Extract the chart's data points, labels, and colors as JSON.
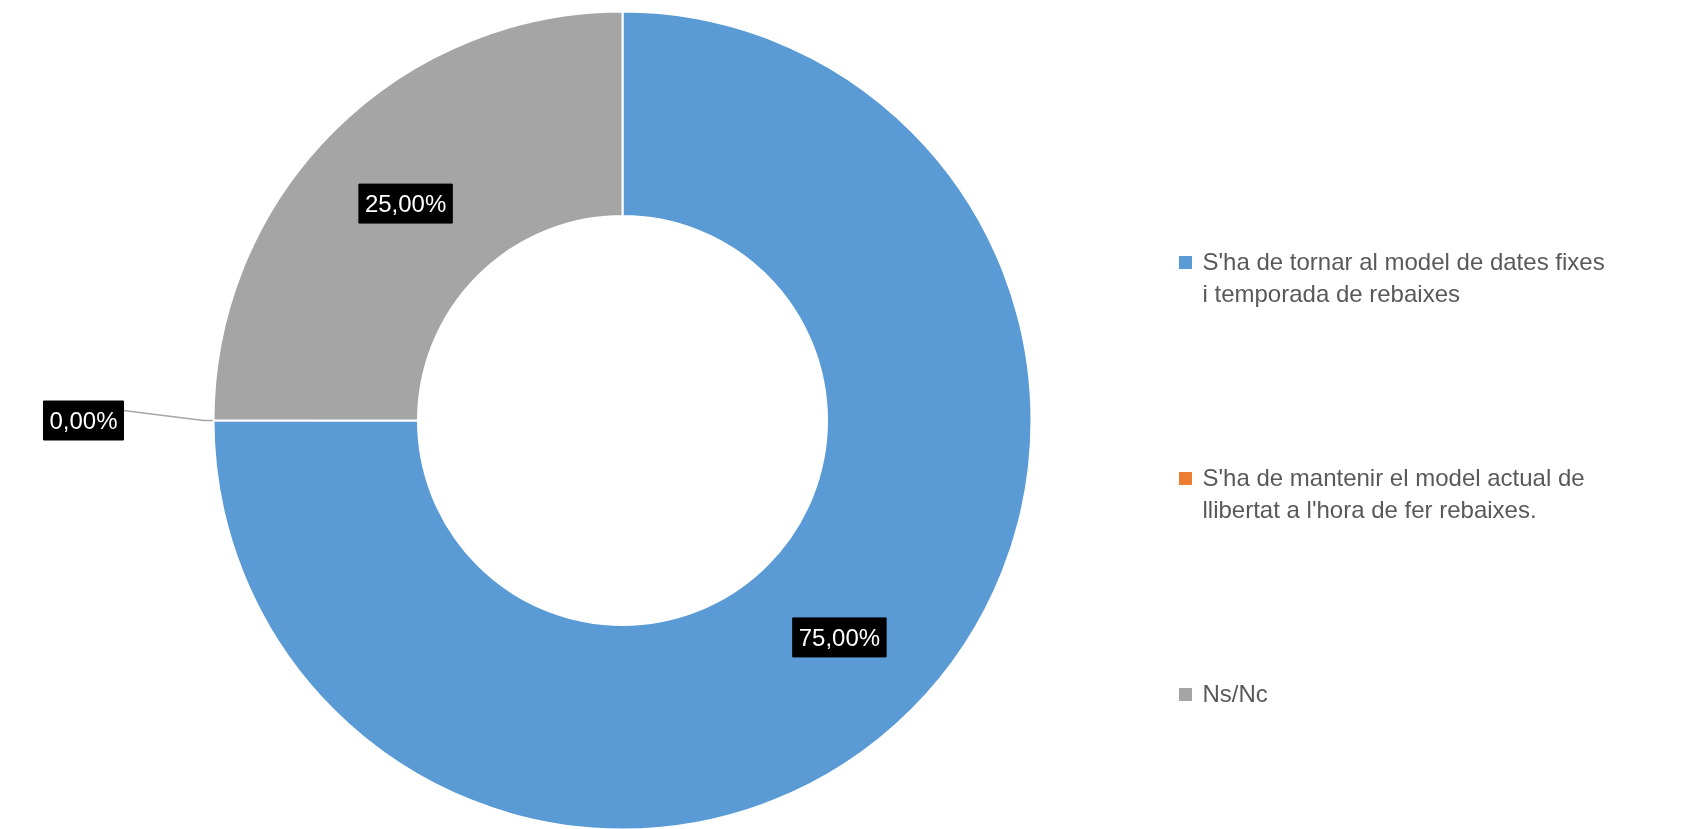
{
  "chart_data": {
    "type": "donut",
    "categories": [
      "S'ha de tornar al model de dates fixes i temporada de rebaixes",
      "S'ha de mantenir el model actual de llibertat a l'hora de fer rebaixes.",
      "Ns/Nc"
    ],
    "values": [
      75,
      0,
      25
    ],
    "colors": [
      "#5b9bd5",
      "#ed7d31",
      "#a5a5a5"
    ],
    "value_labels": [
      "75,00%",
      "0,00%",
      "25,00%"
    ],
    "legend": "right"
  }
}
